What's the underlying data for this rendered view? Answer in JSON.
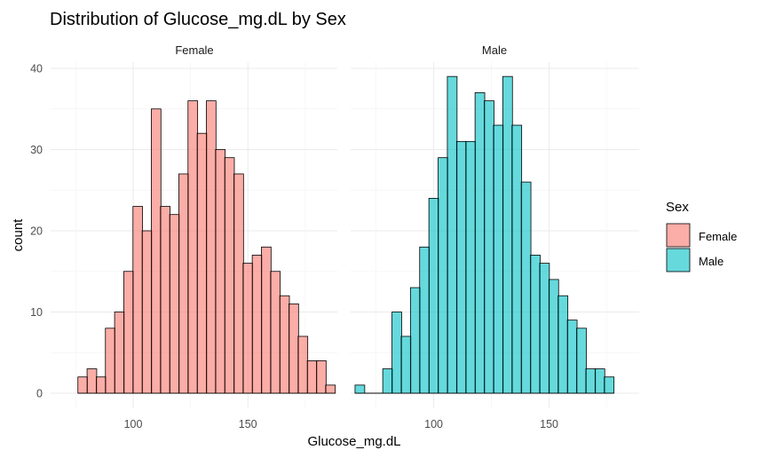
{
  "colors": {
    "female": "#F8766D",
    "male": "#00BFC4"
  },
  "chart_data": {
    "type": "histogram",
    "title": "Distribution of Glucose_mg.dL by Sex",
    "xlabel": "Glucose_mg.dL",
    "ylabel": "count",
    "xlim": [
      64,
      189
    ],
    "ylim": [
      0,
      42
    ],
    "x_ticks": [
      100,
      150
    ],
    "y_ticks": [
      0,
      10,
      20,
      30,
      40
    ],
    "bin_width": 4.2,
    "grid": true,
    "legend": {
      "title": "Sex",
      "position": "right",
      "entries": [
        "Female",
        "Male"
      ]
    },
    "facets": [
      {
        "label": "Female",
        "series": "Female",
        "bins": [
          {
            "x": 78,
            "count": 2
          },
          {
            "x": 82,
            "count": 3
          },
          {
            "x": 86,
            "count": 2
          },
          {
            "x": 90,
            "count": 8
          },
          {
            "x": 94,
            "count": 10
          },
          {
            "x": 98,
            "count": 15
          },
          {
            "x": 102,
            "count": 23
          },
          {
            "x": 106,
            "count": 20
          },
          {
            "x": 110,
            "count": 35
          },
          {
            "x": 114,
            "count": 23
          },
          {
            "x": 118,
            "count": 22
          },
          {
            "x": 122,
            "count": 27
          },
          {
            "x": 126,
            "count": 36
          },
          {
            "x": 130,
            "count": 32
          },
          {
            "x": 134,
            "count": 36
          },
          {
            "x": 138,
            "count": 30
          },
          {
            "x": 142,
            "count": 29
          },
          {
            "x": 146,
            "count": 27
          },
          {
            "x": 150,
            "count": 16
          },
          {
            "x": 154,
            "count": 17
          },
          {
            "x": 158,
            "count": 18
          },
          {
            "x": 162,
            "count": 15
          },
          {
            "x": 166,
            "count": 12
          },
          {
            "x": 170,
            "count": 11
          },
          {
            "x": 174,
            "count": 7
          },
          {
            "x": 178,
            "count": 4
          },
          {
            "x": 182,
            "count": 4
          },
          {
            "x": 186,
            "count": 1
          }
        ]
      },
      {
        "label": "Male",
        "series": "Male",
        "bins": [
          {
            "x": 68,
            "count": 1
          },
          {
            "x": 72,
            "count": 0
          },
          {
            "x": 76,
            "count": 0
          },
          {
            "x": 80,
            "count": 3
          },
          {
            "x": 84,
            "count": 10
          },
          {
            "x": 88,
            "count": 7
          },
          {
            "x": 92,
            "count": 13
          },
          {
            "x": 96,
            "count": 18
          },
          {
            "x": 100,
            "count": 24
          },
          {
            "x": 104,
            "count": 29
          },
          {
            "x": 108,
            "count": 39
          },
          {
            "x": 112,
            "count": 31
          },
          {
            "x": 116,
            "count": 31
          },
          {
            "x": 120,
            "count": 37
          },
          {
            "x": 124,
            "count": 36
          },
          {
            "x": 128,
            "count": 33
          },
          {
            "x": 132,
            "count": 39
          },
          {
            "x": 136,
            "count": 33
          },
          {
            "x": 140,
            "count": 26
          },
          {
            "x": 144,
            "count": 17
          },
          {
            "x": 148,
            "count": 16
          },
          {
            "x": 152,
            "count": 14
          },
          {
            "x": 156,
            "count": 12
          },
          {
            "x": 160,
            "count": 9
          },
          {
            "x": 164,
            "count": 8
          },
          {
            "x": 168,
            "count": 3
          },
          {
            "x": 172,
            "count": 3
          },
          {
            "x": 176,
            "count": 2
          }
        ]
      }
    ]
  }
}
